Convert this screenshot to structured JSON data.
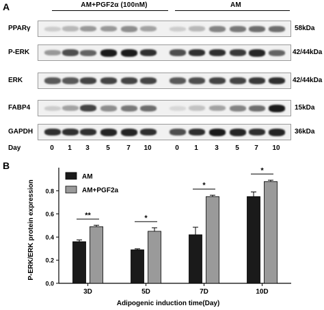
{
  "panel_a": {
    "label": "A",
    "group_labels": [
      "AM+PGF2α (100nM)",
      "AM"
    ],
    "blots": [
      {
        "name": "PPARγ",
        "mw": "58kDa",
        "intensity": [
          0.1,
          0.2,
          0.35,
          0.35,
          0.4,
          0.3,
          0.1,
          0.2,
          0.45,
          0.5,
          0.55,
          0.55
        ]
      },
      {
        "name": "P-ERK",
        "mw": "42/44kDa",
        "intensity": [
          0.35,
          0.7,
          0.6,
          0.95,
          0.95,
          0.85,
          0.7,
          0.85,
          0.85,
          0.8,
          0.9,
          0.6
        ]
      },
      {
        "name": "ERK",
        "mw": "42/44kDa",
        "intensity": [
          0.65,
          0.65,
          0.75,
          0.75,
          0.75,
          0.75,
          0.65,
          0.7,
          0.75,
          0.75,
          0.8,
          0.85
        ]
      },
      {
        "name": "FABP4",
        "mw": "15kDa",
        "intensity": [
          0.1,
          0.3,
          0.75,
          0.4,
          0.5,
          0.55,
          0.05,
          0.15,
          0.3,
          0.45,
          0.55,
          0.95
        ]
      },
      {
        "name": "GAPDH",
        "mw": "36kDa",
        "intensity": [
          0.85,
          0.85,
          0.85,
          0.9,
          0.9,
          0.85,
          0.7,
          0.85,
          0.95,
          0.9,
          0.85,
          0.9
        ]
      }
    ],
    "day_label": "Day",
    "lanes": [
      "0",
      "1",
      "3",
      "5",
      "7",
      "10",
      "0",
      "1",
      "3",
      "5",
      "7",
      "10"
    ]
  },
  "panel_b": {
    "label": "B"
  },
  "chart_data": {
    "type": "bar",
    "categories": [
      "3D",
      "5D",
      "7D",
      "10D"
    ],
    "series": [
      {
        "name": "AM",
        "values": [
          0.36,
          0.29,
          0.42,
          0.75
        ],
        "errors": [
          0.015,
          0.008,
          0.065,
          0.04
        ],
        "color": "#1a1a1a"
      },
      {
        "name": "AM+PGF2a",
        "values": [
          0.49,
          0.45,
          0.75,
          0.88
        ],
        "errors": [
          0.012,
          0.03,
          0.012,
          0.012
        ],
        "color": "#9a9a9a"
      }
    ],
    "significance": [
      "**",
      "*",
      "*",
      "*"
    ],
    "ylabel": "P-ERK/ERK protein expression",
    "xlabel": "Adipogenic induction time(Day)",
    "ylim": [
      0,
      1.0
    ],
    "yticks": [
      "0.0",
      "0.2",
      "0.4",
      "0.6",
      "0.8"
    ],
    "legend_position": "top-left"
  }
}
